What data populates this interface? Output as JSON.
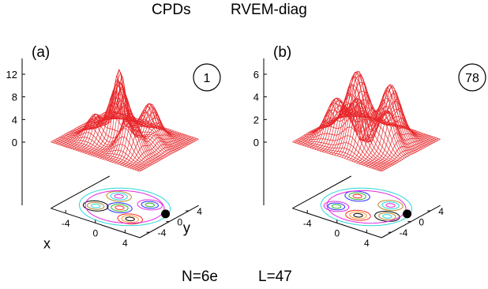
{
  "header": {
    "left": "CPDs",
    "right": "RVEM-diag"
  },
  "footer": {
    "electrons": "N=6e",
    "angular_momentum": "L=47"
  },
  "colors": {
    "mesh": "#e8262a",
    "contours": [
      "#ff2a2a",
      "#2ab52a",
      "#2a2aff",
      "#e02ae0",
      "#2ad8d8",
      "#b5892a",
      "#000000",
      "#ff9a2a"
    ]
  },
  "chart_data": [
    {
      "type": "surface",
      "panel_label": "(a)",
      "badge": "1",
      "z_ticks": [
        "12",
        "8",
        "4",
        "0"
      ],
      "x_ticks": [
        "-4",
        "0",
        "4"
      ],
      "y_ticks": [
        "4",
        "0",
        "-4"
      ],
      "xlabel": "x",
      "ylabel": "y",
      "xlim": [
        -6,
        6
      ],
      "ylim": [
        -6,
        6
      ],
      "zlim": [
        0,
        12
      ],
      "marker": {
        "x": 4.5,
        "y": 1.5
      }
    },
    {
      "type": "surface",
      "panel_label": "(b)",
      "badge": "78",
      "z_ticks": [
        "6",
        "4",
        "2",
        "0"
      ],
      "x_ticks": [
        "-4",
        "0",
        "4"
      ],
      "y_ticks": [
        "4",
        "0",
        "-4"
      ],
      "xlabel": "",
      "ylabel": "",
      "xlim": [
        -6,
        6
      ],
      "ylim": [
        -6,
        6
      ],
      "zlim": [
        0,
        6
      ],
      "marker": {
        "x": 4.5,
        "y": 1.5
      }
    }
  ]
}
